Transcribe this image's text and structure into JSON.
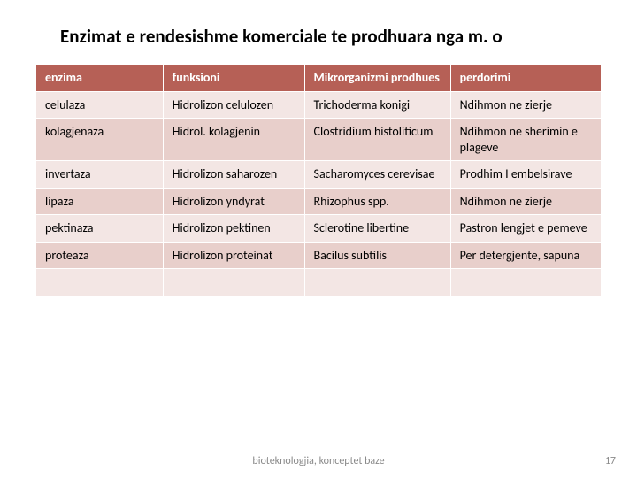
{
  "title": "Enzimat e rendesishme komerciale te prodhuara nga m. o",
  "table": {
    "columns": [
      "enzima",
      "funksioni",
      "Mikrorganizmi prodhues",
      "perdorimi"
    ],
    "rows": [
      [
        "celulaza",
        "Hidrolizon celulozen",
        "Trichoderma konigi",
        "Ndihmon ne zierje"
      ],
      [
        "kolagjenaza",
        "Hidrol. kolagjenin",
        "Clostridium histoliticum",
        "Ndihmon ne sherimin e plageve"
      ],
      [
        "invertaza",
        "Hidrolizon saharozen",
        "Sacharomyces cerevisae",
        "Prodhim I embelsirave"
      ],
      [
        "lipaza",
        "Hidrolizon yndyrat",
        "Rhizophus spp.",
        "Ndihmon ne zierje"
      ],
      [
        "pektinaza",
        "Hidrolizon pektinen",
        "Sclerotine libertine",
        "Pastron lengjet e pemeve"
      ],
      [
        "proteaza",
        "Hidrolizon proteinat",
        "Bacilus subtilis",
        "Per detergjente, sapuna"
      ],
      [
        "",
        "",
        "",
        ""
      ]
    ],
    "header_bg": "#b66056",
    "header_fg": "#ffffff",
    "row_odd_bg": "#f3e6e4",
    "row_even_bg": "#e8cfcb",
    "border_color": "#ffffff"
  },
  "footer": {
    "caption": "bioteknologjia, konceptet baze",
    "page_number": "17"
  }
}
